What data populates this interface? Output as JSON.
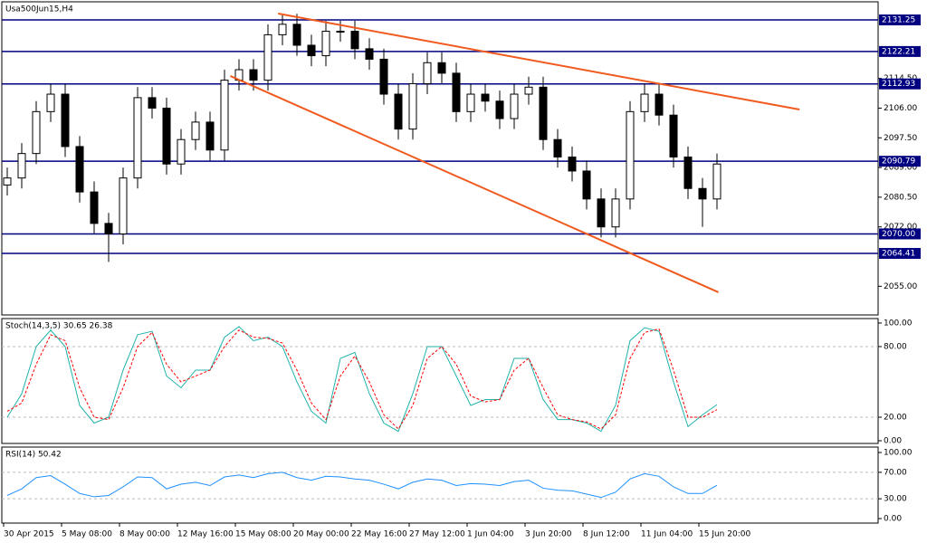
{
  "chart_data": [
    {
      "type": "candlestick",
      "title": "Usa500Jun15,H4",
      "open": [
        2084,
        2086,
        2093,
        2105,
        2110,
        2095,
        2082,
        2073,
        2070,
        2086,
        2109,
        2106,
        2090,
        2097,
        2102,
        2094,
        2114,
        2117,
        2114,
        2127,
        2130,
        2124,
        2121,
        2128,
        2128,
        2123,
        2120,
        2110,
        2100,
        2113,
        2119,
        2116,
        2105,
        2110,
        2108,
        2103,
        2110,
        2112,
        2097,
        2092,
        2088,
        2080,
        2072,
        2080,
        2105,
        2110,
        2104,
        2092,
        2083,
        2080
      ],
      "high": [
        2089,
        2096,
        2108,
        2113,
        2113,
        2098,
        2085,
        2076,
        2089,
        2112,
        2112,
        2109,
        2100,
        2105,
        2105,
        2117,
        2120,
        2120,
        2130,
        2133,
        2133,
        2127,
        2131,
        2131,
        2131,
        2126,
        2123,
        2113,
        2116,
        2122,
        2122,
        2119,
        2113,
        2113,
        2111,
        2113,
        2115,
        2115,
        2100,
        2095,
        2091,
        2083,
        2083,
        2108,
        2113,
        2113,
        2107,
        2095,
        2086,
        2093
      ],
      "low": [
        2081,
        2083,
        2090,
        2102,
        2092,
        2079,
        2070,
        2062,
        2067,
        2083,
        2103,
        2087,
        2087,
        2094,
        2091,
        2091,
        2111,
        2111,
        2111,
        2124,
        2121,
        2118,
        2118,
        2125,
        2120,
        2117,
        2107,
        2097,
        2097,
        2110,
        2113,
        2102,
        2102,
        2105,
        2100,
        2100,
        2107,
        2094,
        2089,
        2085,
        2077,
        2069,
        2069,
        2077,
        2102,
        2101,
        2089,
        2080,
        2072,
        2077
      ],
      "close": [
        2086,
        2093,
        2105,
        2110,
        2095,
        2082,
        2073,
        2070,
        2086,
        2109,
        2106,
        2090,
        2097,
        2102,
        2094,
        2114,
        2117,
        2114,
        2127,
        2130,
        2124,
        2121,
        2128,
        2128,
        2123,
        2120,
        2110,
        2100,
        2113,
        2119,
        2116,
        2105,
        2110,
        2108,
        2103,
        2110,
        2112,
        2097,
        2092,
        2088,
        2080,
        2072,
        2080,
        2105,
        2110,
        2104,
        2092,
        2083,
        2080,
        2090
      ],
      "up_color": "#ffffff",
      "down_color": "#000000",
      "ylim": [
        2046.8,
        2136.43
      ],
      "yticks": [
        {
          "value": 2114.5,
          "label": "2114.50"
        },
        {
          "value": 2106,
          "label": "2106.00"
        },
        {
          "value": 2097.5,
          "label": "2097.50"
        },
        {
          "value": 2089,
          "label": "2089.00"
        },
        {
          "value": 2080.5,
          "label": "2080.50"
        },
        {
          "value": 2072,
          "label": "2072.00"
        },
        {
          "value": 2055,
          "label": "2055.00"
        }
      ],
      "levels": [
        {
          "value": 2131.25,
          "label": "2131.25"
        },
        {
          "value": 2122.21,
          "label": "2122.21"
        },
        {
          "value": 2112.93,
          "label": "2112.93"
        },
        {
          "value": 2090.79,
          "label": "2090.79"
        },
        {
          "value": 2070,
          "label": "2070.00"
        },
        {
          "value": 2064.41,
          "label": "2064.41"
        }
      ],
      "level_color": "#000080",
      "trendlines": [
        {
          "x": [
            18.7,
            54.7
          ],
          "y": [
            2133.06,
            2105.6
          ]
        },
        {
          "x": [
            15.4,
            49.1
          ],
          "y": [
            2115.2,
            2053.3
          ]
        }
      ],
      "trend_color": "#f05a1e"
    },
    {
      "type": "line",
      "title": "Stoch(14,3,5) 30.65 26.38",
      "series": [
        {
          "color": "#20b2aa",
          "values": [
            20,
            40,
            80,
            94,
            80,
            30,
            15,
            20,
            60,
            90,
            93,
            55,
            45,
            60,
            60,
            88,
            97,
            85,
            88,
            80,
            50,
            25,
            15,
            70,
            75,
            40,
            15,
            8,
            40,
            80,
            80,
            55,
            30,
            35,
            35,
            70,
            70,
            35,
            18,
            18,
            15,
            8,
            30,
            85,
            96,
            93,
            50,
            12,
            22,
            30.65
          ]
        },
        {
          "color": "#ff0000",
          "dashed": true,
          "values": [
            25,
            32,
            65,
            90,
            85,
            45,
            20,
            18,
            45,
            80,
            92,
            65,
            50,
            55,
            60,
            80,
            94,
            88,
            87,
            83,
            60,
            32,
            18,
            55,
            72,
            50,
            22,
            10,
            30,
            70,
            80,
            65,
            38,
            33,
            35,
            60,
            70,
            45,
            22,
            18,
            16,
            10,
            22,
            70,
            92,
            95,
            60,
            20,
            20,
            26.38
          ]
        }
      ],
      "ylim": [
        -2.3,
        103.8
      ],
      "yticks": [
        {
          "value": 100,
          "label": "100.00"
        },
        {
          "value": 80,
          "label": "80.00"
        },
        {
          "value": 20,
          "label": "20.00"
        },
        {
          "value": 0,
          "label": "0.00"
        }
      ],
      "levels": [
        80,
        20
      ]
    },
    {
      "type": "line",
      "title": "RSI(14) 50.42",
      "series": [
        {
          "color": "#1e90ff",
          "values": [
            35,
            45,
            62,
            65,
            52,
            38,
            33,
            35,
            48,
            63,
            62,
            45,
            52,
            55,
            50,
            63,
            66,
            62,
            68,
            70,
            62,
            58,
            64,
            63,
            60,
            58,
            52,
            45,
            55,
            60,
            58,
            50,
            53,
            52,
            50,
            56,
            58,
            46,
            43,
            42,
            37,
            32,
            40,
            60,
            68,
            64,
            48,
            38,
            38,
            50.42
          ]
        }
      ],
      "ylim": [
        -6.8,
        108.2
      ],
      "yticks": [
        {
          "value": 100,
          "label": "100.00"
        },
        {
          "value": 70,
          "label": "70.00"
        },
        {
          "value": 30,
          "label": "30.00"
        },
        {
          "value": 0,
          "label": "0.00"
        }
      ],
      "levels": [
        70,
        30
      ],
      "xticks": [
        {
          "value": 0,
          "label": "30 Apr 2015"
        },
        {
          "value": 4,
          "label": "5 May 08:00"
        },
        {
          "value": 8,
          "label": "8 May 00:00"
        },
        {
          "value": 12,
          "label": "12 May 16:00"
        },
        {
          "value": 16,
          "label": "15 May 08:00"
        },
        {
          "value": 20,
          "label": "20 May 00:00"
        },
        {
          "value": 24,
          "label": "22 May 16:00"
        },
        {
          "value": 28,
          "label": "27 May 12:00"
        },
        {
          "value": 32,
          "label": "1 Jun 04:00"
        },
        {
          "value": 36,
          "label": "3 Jun 20:00"
        },
        {
          "value": 40,
          "label": "8 Jun 12:00"
        },
        {
          "value": 44,
          "label": "11 Jun 04:00"
        },
        {
          "value": 48,
          "label": "15 Jun 20:00"
        }
      ]
    }
  ]
}
